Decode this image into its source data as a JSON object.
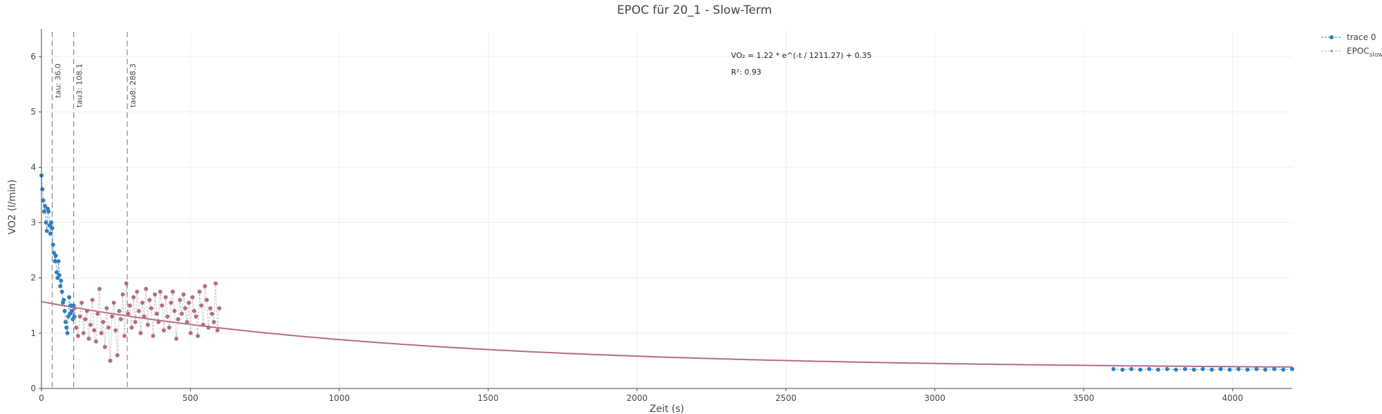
{
  "chart_data": {
    "type": "scatter",
    "title": "EPOC für 20_1 - Slow-Term",
    "xlabel": "Zeit (s)",
    "ylabel": "VO2 (l/min)",
    "xlim": [
      0,
      4200
    ],
    "ylim": [
      0,
      6.5
    ],
    "x_ticks": [
      0,
      500,
      1000,
      1500,
      2000,
      2500,
      3000,
      3500,
      4000
    ],
    "y_ticks": [
      0,
      1,
      2,
      3,
      4,
      5,
      6
    ],
    "grid": true,
    "legend_position": "top-right",
    "colors": {
      "trace0": "#2f7fc1",
      "epoc": "#b56a86",
      "grid": "#eeeeee",
      "vline": "#888888"
    },
    "series": [
      {
        "name": "trace 0",
        "mode": "markers+lines",
        "x": [
          0,
          3,
          6,
          9,
          12,
          15,
          18,
          21,
          24,
          27,
          30,
          33,
          36,
          39,
          42,
          45,
          48,
          51,
          54,
          57,
          60,
          63,
          66,
          69,
          72,
          75,
          78,
          81,
          84,
          87,
          90,
          93,
          96,
          99,
          102,
          105,
          108,
          111,
          3600,
          3630,
          3660,
          3690,
          3720,
          3750,
          3780,
          3810,
          3840,
          3870,
          3900,
          3930,
          3960,
          3990,
          4020,
          4050,
          4080,
          4110,
          4140,
          4170,
          4200
        ],
        "y": [
          3.85,
          3.6,
          3.4,
          3.2,
          3.3,
          3.0,
          2.85,
          3.25,
          3.2,
          2.95,
          2.8,
          3.0,
          2.9,
          2.6,
          2.45,
          2.3,
          2.4,
          2.1,
          2.0,
          2.3,
          2.05,
          1.85,
          1.95,
          1.75,
          1.55,
          1.6,
          1.4,
          1.2,
          1.1,
          1.0,
          1.3,
          1.65,
          1.35,
          1.5,
          1.4,
          1.25,
          1.5,
          1.3,
          0.35,
          0.34,
          0.35,
          0.34,
          0.35,
          0.34,
          0.35,
          0.34,
          0.35,
          0.34,
          0.35,
          0.34,
          0.35,
          0.34,
          0.35,
          0.34,
          0.35,
          0.34,
          0.35,
          0.34,
          0.35
        ]
      },
      {
        "name": "EPOC<sub>slow</sub>",
        "mode": "markers+lines",
        "x": [
          111,
          117,
          123,
          129,
          135,
          141,
          147,
          153,
          159,
          165,
          171,
          177,
          183,
          189,
          195,
          201,
          207,
          213,
          219,
          225,
          231,
          237,
          243,
          249,
          255,
          261,
          267,
          273,
          279,
          285,
          291,
          297,
          303,
          309,
          315,
          321,
          327,
          333,
          339,
          345,
          351,
          357,
          363,
          369,
          375,
          381,
          387,
          393,
          399,
          405,
          411,
          417,
          423,
          429,
          435,
          441,
          447,
          453,
          459,
          465,
          471,
          477,
          483,
          489,
          495,
          501,
          507,
          513,
          519,
          525,
          531,
          537,
          543,
          549,
          555,
          561,
          567,
          573,
          579,
          585,
          591,
          597
        ],
        "y": [
          1.45,
          1.1,
          0.95,
          1.3,
          1.55,
          1.0,
          1.25,
          1.4,
          0.9,
          1.15,
          1.6,
          1.05,
          0.85,
          1.35,
          1.8,
          1.0,
          1.2,
          0.75,
          1.45,
          1.1,
          0.5,
          1.3,
          1.55,
          1.05,
          0.6,
          1.4,
          1.25,
          1.7,
          0.95,
          1.9,
          1.35,
          1.5,
          1.1,
          1.65,
          1.2,
          1.75,
          1.4,
          1.0,
          1.55,
          1.3,
          1.8,
          1.15,
          1.6,
          1.45,
          0.95,
          1.7,
          1.35,
          1.2,
          1.75,
          1.5,
          1.05,
          1.65,
          1.3,
          1.1,
          1.55,
          1.75,
          1.4,
          0.9,
          1.25,
          1.6,
          1.35,
          1.7,
          1.45,
          1.2,
          1.55,
          1.0,
          1.65,
          1.4,
          1.3,
          0.95,
          1.75,
          1.5,
          1.15,
          1.85,
          1.6,
          1.1,
          1.45,
          1.35,
          1.2,
          1.9,
          1.05,
          1.45
        ]
      }
    ],
    "fit_curve": {
      "a": 1.22,
      "tau": 1211.27,
      "c": 0.35
    },
    "vlines": [
      {
        "x": 36.0,
        "label": "tau: 36.0"
      },
      {
        "x": 108.1,
        "label": "tau3: 108.1"
      },
      {
        "x": 288.3,
        "label": "tau8: 288.3"
      }
    ],
    "annotations": [
      {
        "text": "VO₂ = 1.22 * e^(-t / 1211.27) + 0.35"
      },
      {
        "text": "R²: 0.93"
      }
    ],
    "legend": [
      {
        "label": "trace 0"
      },
      {
        "label": "EPOC",
        "sub": "slow"
      }
    ]
  }
}
